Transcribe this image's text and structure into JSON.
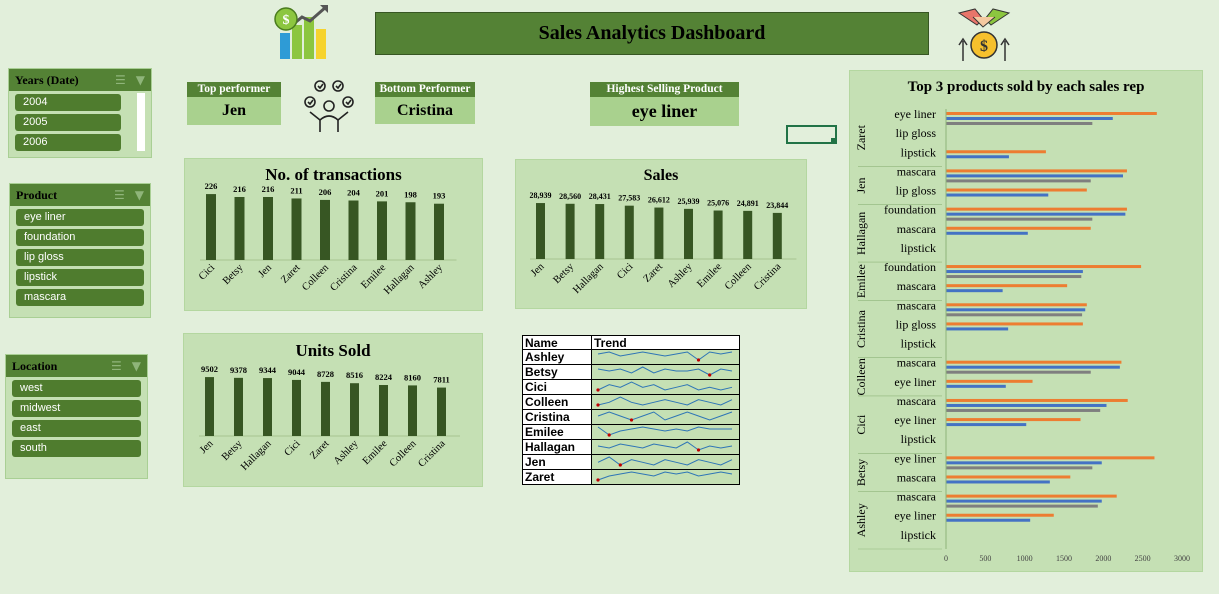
{
  "dashboard": {
    "title": "Sales Analytics Dashboard"
  },
  "slicers": {
    "years": {
      "title": "Years (Date)",
      "items": [
        "2004",
        "2005",
        "2006"
      ]
    },
    "product": {
      "title": "Product",
      "items": [
        "eye liner",
        "foundation",
        "lip gloss",
        "lipstick",
        "mascara"
      ]
    },
    "location": {
      "title": "Location",
      "items": [
        "west",
        "midwest",
        "east",
        "south"
      ]
    }
  },
  "kpis": {
    "top_performer": {
      "label": "Top performer",
      "value": "Jen"
    },
    "bottom_performer": {
      "label": "Bottom Performer",
      "value": "Cristina"
    },
    "highest_selling": {
      "label": "Highest Selling Product",
      "value": "eye liner"
    }
  },
  "colors": {
    "bar_dark": "#375623",
    "orange": "#ed7d31",
    "blue": "#4472c4",
    "gray": "#7f7f7f",
    "red_mark": "#c00000",
    "line_blue": "#2e75b6"
  },
  "icons": {
    "logo": "chart-dollar-icon",
    "person": "person-ideas-icon",
    "handshake": "handshake-coin-icon",
    "filter": "filter-icon",
    "multiselect": "multiselect-icon"
  },
  "trend": {
    "headers": [
      "Name",
      "Trend"
    ],
    "rows": [
      {
        "name": "Ashley",
        "values": [
          4,
          5,
          3,
          4,
          5,
          4,
          3,
          4,
          5,
          1,
          5,
          4,
          5
        ]
      },
      {
        "name": "Betsy",
        "values": [
          5,
          4,
          5,
          3,
          6,
          3,
          5,
          4,
          4,
          5,
          2,
          5,
          4
        ]
      },
      {
        "name": "Cici",
        "values": [
          3,
          5,
          4,
          6,
          4,
          5,
          3,
          4,
          5,
          3,
          4,
          3,
          4
        ]
      },
      {
        "name": "Colleen",
        "values": [
          3,
          4,
          6,
          4,
          3,
          4,
          5,
          4,
          3,
          5,
          4,
          3,
          5
        ]
      },
      {
        "name": "Cristina",
        "values": [
          4,
          5,
          4,
          3,
          4,
          5,
          3,
          4,
          5,
          4,
          3,
          4,
          5
        ]
      },
      {
        "name": "Emilee",
        "values": [
          5,
          1,
          3,
          4,
          5,
          4,
          3,
          4,
          3,
          5,
          4,
          4,
          4
        ]
      },
      {
        "name": "Hallagan",
        "values": [
          4,
          3,
          5,
          4,
          3,
          5,
          4,
          3,
          6,
          2,
          4,
          3,
          4
        ]
      },
      {
        "name": "Jen",
        "values": [
          4,
          6,
          3,
          5,
          4,
          3,
          5,
          4,
          3,
          5,
          4,
          3,
          5
        ]
      },
      {
        "name": "Zaret",
        "values": [
          1,
          3,
          4,
          5,
          4,
          3,
          5,
          4,
          5,
          3,
          4,
          5,
          4
        ]
      }
    ]
  },
  "chart_data": [
    {
      "id": "transactions",
      "type": "bar",
      "title": "No. of transactions",
      "categories": [
        "Cici",
        "Betsy",
        "Jen",
        "Zaret",
        "Colleen",
        "Cristina",
        "Emilee",
        "Hallagan",
        "Ashley"
      ],
      "values": [
        226,
        216,
        216,
        211,
        206,
        204,
        201,
        198,
        193
      ],
      "labels": [
        "226",
        "216",
        "216",
        "211",
        "206",
        "204",
        "201",
        "198",
        "193"
      ],
      "ylim": [
        0,
        240
      ]
    },
    {
      "id": "sales",
      "type": "bar",
      "title": "Sales",
      "categories": [
        "Jen",
        "Betsy",
        "Hallagan",
        "Cici",
        "Zaret",
        "Ashley",
        "Emilee",
        "Colleen",
        "Cristina"
      ],
      "values": [
        28939,
        28560,
        28431,
        27583,
        26612,
        25939,
        25076,
        24891,
        23844
      ],
      "labels": [
        "28,939",
        "28,560",
        "28,431",
        "27,583",
        "26,612",
        "25,939",
        "25,076",
        "24,891",
        "23,844"
      ],
      "ylim": [
        0,
        30000
      ]
    },
    {
      "id": "units",
      "type": "bar",
      "title": "Units Sold",
      "categories": [
        "Jen",
        "Betsy",
        "Hallagan",
        "Cici",
        "Zaret",
        "Ashley",
        "Emilee",
        "Colleen",
        "Cristina"
      ],
      "values": [
        9502,
        9378,
        9344,
        9044,
        8728,
        8516,
        8224,
        8160,
        7811
      ],
      "labels": [
        "9502",
        "9378",
        "9344",
        "9044",
        "8728",
        "8516",
        "8224",
        "8160",
        "7811"
      ],
      "ylim": [
        0,
        10000
      ]
    },
    {
      "id": "top3",
      "type": "bar",
      "orientation": "horizontal",
      "title": "Top 3 products sold by each sales rep",
      "xlim": [
        0,
        3000
      ],
      "xticks": [
        "0",
        "500",
        "1000",
        "1500",
        "2000",
        "2500",
        "3000"
      ],
      "groups": [
        {
          "rep": "Zaret",
          "products": [
            {
              "name": "eye liner",
              "values": [
                2680,
                2120,
                1860
              ]
            },
            {
              "name": "lip gloss",
              "values": [
                null,
                null,
                null
              ]
            },
            {
              "name": "lipstick",
              "values": [
                1270,
                800,
                null
              ]
            }
          ]
        },
        {
          "rep": "Jen",
          "products": [
            {
              "name": "mascara",
              "values": [
                2300,
                2250,
                1840
              ]
            },
            {
              "name": "lip gloss",
              "values": [
                1790,
                1300,
                null
              ]
            }
          ]
        },
        {
          "rep": "Hallagan",
          "products": [
            {
              "name": "foundation",
              "values": [
                2300,
                2280,
                1860
              ]
            },
            {
              "name": "mascara",
              "values": [
                1840,
                1040,
                null
              ]
            },
            {
              "name": "lipstick",
              "values": [
                null,
                null,
                null
              ]
            }
          ]
        },
        {
          "rep": "Emilee",
          "products": [
            {
              "name": "foundation",
              "values": [
                2480,
                1740,
                1720
              ]
            },
            {
              "name": "mascara",
              "values": [
                1540,
                720,
                null
              ]
            }
          ]
        },
        {
          "rep": "Cristina",
          "products": [
            {
              "name": "mascara",
              "values": [
                1790,
                1770,
                1730
              ]
            },
            {
              "name": "lip gloss",
              "values": [
                1740,
                790,
                null
              ]
            },
            {
              "name": "lipstick",
              "values": [
                null,
                null,
                null
              ]
            }
          ]
        },
        {
          "rep": "Colleen",
          "products": [
            {
              "name": "mascara",
              "values": [
                2230,
                2210,
                1840
              ]
            },
            {
              "name": "eye liner",
              "values": [
                1100,
                760,
                null
              ]
            }
          ]
        },
        {
          "rep": "Cici",
          "products": [
            {
              "name": "mascara",
              "values": [
                2310,
                2040,
                1960
              ]
            },
            {
              "name": "eye liner",
              "values": [
                1710,
                1020,
                null
              ]
            },
            {
              "name": "lipstick",
              "values": [
                null,
                null,
                null
              ]
            }
          ]
        },
        {
          "rep": "Betsy",
          "products": [
            {
              "name": "eye liner",
              "values": [
                2650,
                1980,
                1860
              ]
            },
            {
              "name": "mascara",
              "values": [
                1580,
                1320,
                null
              ]
            }
          ]
        },
        {
          "rep": "Ashley",
          "products": [
            {
              "name": "mascara",
              "values": [
                2170,
                1980,
                1930
              ]
            },
            {
              "name": "eye liner",
              "values": [
                1370,
                1070,
                null
              ]
            },
            {
              "name": "lipstick",
              "values": [
                null,
                null,
                null
              ]
            }
          ]
        }
      ]
    }
  ]
}
